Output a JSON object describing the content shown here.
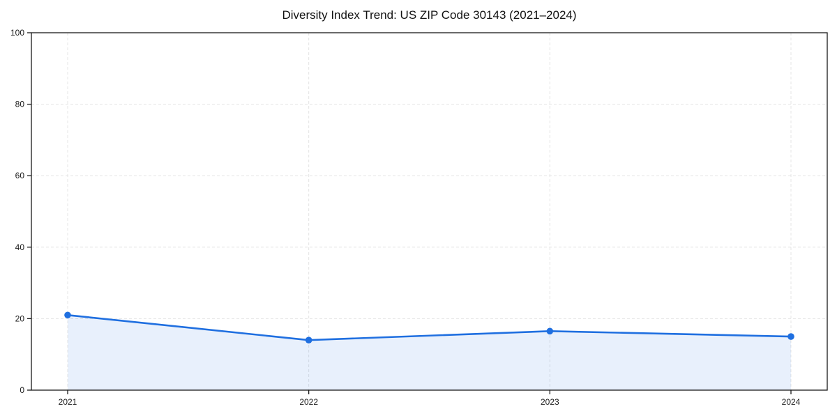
{
  "chart_data": {
    "type": "area",
    "title": "Diversity Index Trend: US ZIP Code 30143 (2021–2024)",
    "x": [
      "2021",
      "2022",
      "2023",
      "2024"
    ],
    "series": [
      {
        "name": "Diversity Index",
        "values": [
          21,
          14,
          16.5,
          15
        ]
      }
    ],
    "xlabel": "",
    "ylabel": "",
    "ylim": [
      0,
      100
    ],
    "yticks": [
      0,
      20,
      40,
      60,
      80,
      100
    ],
    "grid": true,
    "grid_style": "dashed",
    "legend_position": "none",
    "colors": {
      "line": "#1f6fe0",
      "marker": "#1f6fe0",
      "area_fill": "rgba(31, 111, 224, 0.10)",
      "gridline": "#e4e4e4",
      "axis": "#1a1a1a",
      "tick_label": "#1a1a1a",
      "background": "#ffffff"
    },
    "marker_shape": "circle"
  }
}
